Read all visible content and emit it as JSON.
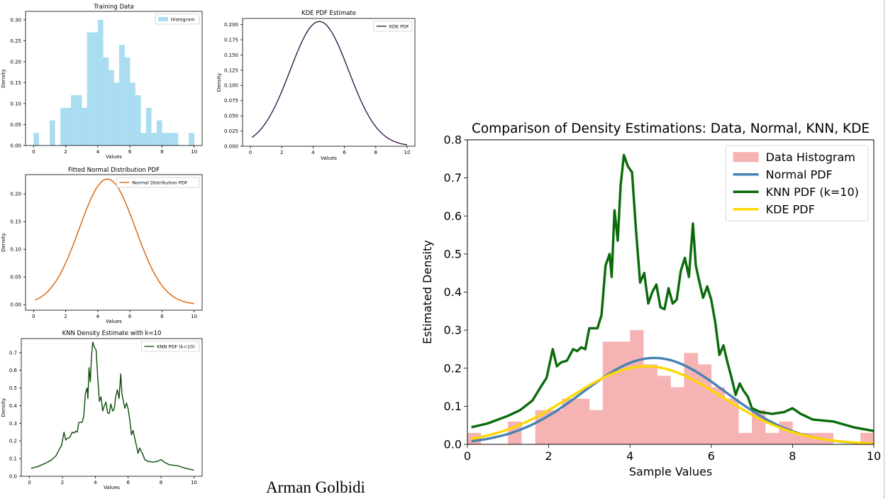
{
  "author": "Arman Golbidi",
  "chart_data": [
    {
      "id": "training",
      "type": "bar",
      "title": "Training Data",
      "xlabel": "Values",
      "ylabel": "Density",
      "xlim": [
        -0.5,
        10.5
      ],
      "ylim": [
        0,
        0.32
      ],
      "xticks": [
        "0",
        "2",
        "4",
        "6",
        "8",
        "10"
      ],
      "yticks": [
        "0.00",
        "0.05",
        "0.10",
        "0.15",
        "0.20",
        "0.25",
        "0.30"
      ],
      "legend": "top-right",
      "series": [
        {
          "name": "Histogram",
          "color": "#87CEEB",
          "edges": [
            0,
            0.33,
            0.67,
            1.0,
            1.33,
            1.67,
            2.0,
            2.33,
            2.67,
            3.0,
            3.33,
            3.67,
            4.0,
            4.33,
            4.67,
            5.0,
            5.33,
            5.67,
            6.0,
            6.33,
            6.67,
            7.0,
            7.33,
            7.67,
            8.0,
            8.33,
            8.67,
            9.0,
            9.33,
            9.67,
            10.0
          ],
          "values": [
            0.03,
            0,
            0,
            0.06,
            0,
            0.09,
            0.09,
            0.12,
            0.12,
            0.09,
            0.27,
            0.27,
            0.3,
            0.21,
            0.18,
            0.15,
            0.24,
            0.21,
            0.15,
            0.12,
            0.03,
            0.09,
            0.03,
            0.06,
            0.03,
            0.03,
            0.03,
            0,
            0,
            0.03
          ]
        }
      ]
    },
    {
      "id": "kde",
      "type": "line",
      "title": "KDE PDF Estimate",
      "xlabel": "Values",
      "ylabel": "Density",
      "xlim": [
        -0.5,
        10.5
      ],
      "ylim": [
        0,
        0.21
      ],
      "xticks": [
        "0",
        "2",
        "4",
        "6",
        "8",
        "10"
      ],
      "yticks": [
        "0.000",
        "0.025",
        "0.050",
        "0.075",
        "0.100",
        "0.125",
        "0.150",
        "0.175",
        "0.200"
      ],
      "legend": "top-right",
      "series": [
        {
          "name": "KDE PDF",
          "color": "#2e0a3d",
          "gauss": {
            "mu": 4.4,
            "sigma": 1.87,
            "peak": 0.205
          },
          "xrange": [
            0.1,
            10
          ]
        }
      ]
    },
    {
      "id": "normal",
      "type": "line",
      "title": "Fitted Normal Distribution PDF",
      "xlabel": "Values",
      "ylabel": "Density",
      "xlim": [
        -0.5,
        10.5
      ],
      "ylim": [
        -0.01,
        0.235
      ],
      "xticks": [
        "0",
        "2",
        "4",
        "6",
        "8",
        "10"
      ],
      "yticks": [
        "0.00",
        "0.05",
        "0.10",
        "0.15",
        "0.20"
      ],
      "legend": "top-right",
      "series": [
        {
          "name": "Normal Distribution PDF",
          "color": "#d95f02",
          "gauss": {
            "mu": 4.6,
            "sigma": 1.75,
            "peak": 0.227
          },
          "xrange": [
            0.1,
            10
          ]
        }
      ]
    },
    {
      "id": "knn",
      "type": "line",
      "title": "KNN Density Estimate with k=10",
      "xlabel": "Values",
      "ylabel": "Density",
      "xlim": [
        -0.5,
        10.5
      ],
      "ylim": [
        0,
        0.78
      ],
      "xticks": [
        "0",
        "2",
        "4",
        "6",
        "8",
        "10"
      ],
      "yticks": [
        "0.0",
        "0.1",
        "0.2",
        "0.3",
        "0.4",
        "0.5",
        "0.6",
        "0.7"
      ],
      "legend": "top-right",
      "series": [
        {
          "name": "KNN PDF (k=10)",
          "color": "#0b4d0b",
          "use": "knn"
        }
      ]
    },
    {
      "id": "comparison",
      "type": "line",
      "title": "Comparison of Density Estimations: Data, Normal, KNN, KDE",
      "xlabel": "Sample Values",
      "ylabel": "Estimated Density",
      "xlim": [
        0,
        10
      ],
      "ylim": [
        0,
        0.8
      ],
      "xticks": [
        "0",
        "2",
        "4",
        "6",
        "8",
        "10"
      ],
      "yticks": [
        "0.0",
        "0.1",
        "0.2",
        "0.3",
        "0.4",
        "0.5",
        "0.6",
        "0.7",
        "0.8"
      ],
      "legend": "top-right",
      "series": [
        {
          "name": "Data Histogram",
          "color": "#f4a6a6",
          "kind": "hist",
          "use": "hist"
        },
        {
          "name": "Normal PDF",
          "color": "#4682b4",
          "gauss": {
            "mu": 4.6,
            "sigma": 1.75,
            "peak": 0.227
          },
          "xrange": [
            0.1,
            10
          ]
        },
        {
          "name": "KNN PDF (k=10)",
          "color": "#0a6b0a",
          "use": "knn"
        },
        {
          "name": "KDE PDF",
          "color": "#ffd700",
          "gauss": {
            "mu": 4.4,
            "sigma": 1.87,
            "peak": 0.205
          },
          "xrange": [
            0.1,
            10
          ]
        }
      ]
    }
  ],
  "knn_curve": {
    "x": [
      0.1,
      0.5,
      1.0,
      1.3,
      1.6,
      1.8,
      1.95,
      2.1,
      2.2,
      2.3,
      2.45,
      2.6,
      2.7,
      2.8,
      2.9,
      3.0,
      3.1,
      3.2,
      3.3,
      3.4,
      3.5,
      3.55,
      3.62,
      3.7,
      3.77,
      3.85,
      3.9,
      3.95,
      4.05,
      4.15,
      4.25,
      4.35,
      4.45,
      4.55,
      4.65,
      4.75,
      4.85,
      4.95,
      5.05,
      5.15,
      5.25,
      5.35,
      5.45,
      5.55,
      5.62,
      5.7,
      5.8,
      5.9,
      6.0,
      6.1,
      6.2,
      6.3,
      6.4,
      6.5,
      6.6,
      6.7,
      6.8,
      6.9,
      7.0,
      7.2,
      7.5,
      7.8,
      8.0,
      8.2,
      8.5,
      9.0,
      9.5,
      10.0
    ],
    "y": [
      0.045,
      0.055,
      0.075,
      0.09,
      0.115,
      0.15,
      0.175,
      0.25,
      0.205,
      0.215,
      0.22,
      0.25,
      0.245,
      0.255,
      0.25,
      0.305,
      0.305,
      0.305,
      0.34,
      0.47,
      0.5,
      0.44,
      0.615,
      0.535,
      0.68,
      0.76,
      0.745,
      0.73,
      0.715,
      0.56,
      0.425,
      0.45,
      0.37,
      0.4,
      0.42,
      0.36,
      0.355,
      0.41,
      0.37,
      0.38,
      0.455,
      0.49,
      0.44,
      0.58,
      0.47,
      0.43,
      0.385,
      0.415,
      0.38,
      0.32,
      0.235,
      0.26,
      0.215,
      0.175,
      0.13,
      0.16,
      0.14,
      0.125,
      0.095,
      0.085,
      0.08,
      0.085,
      0.095,
      0.08,
      0.065,
      0.06,
      0.045,
      0.035
    ]
  }
}
